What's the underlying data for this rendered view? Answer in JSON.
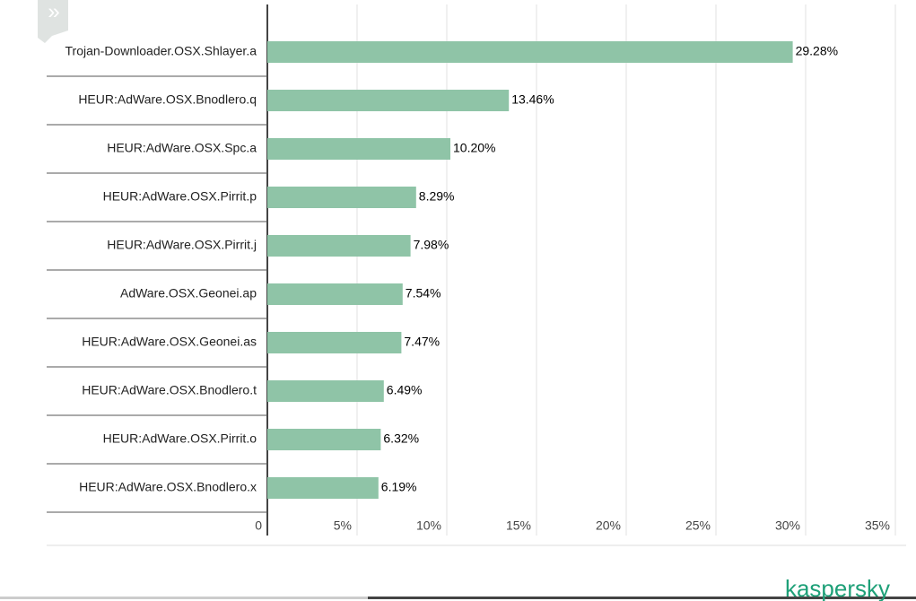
{
  "chart_data": {
    "type": "hbar",
    "categories": [
      "Trojan-Downloader.OSX.Shlayer.a",
      "HEUR:AdWare.OSX.Bnodlero.q",
      "HEUR:AdWare.OSX.Spc.a",
      "HEUR:AdWare.OSX.Pirrit.p",
      "HEUR:AdWare.OSX.Pirrit.j",
      "AdWare.OSX.Geonei.ap",
      "HEUR:AdWare.OSX.Geonei.as",
      "HEUR:AdWare.OSX.Bnodlero.t",
      "HEUR:AdWare.OSX.Pirrit.o",
      "HEUR:AdWare.OSX.Bnodlero.x"
    ],
    "values": [
      29.28,
      13.46,
      10.2,
      8.29,
      7.98,
      7.54,
      7.47,
      6.49,
      6.32,
      6.19
    ],
    "value_labels": [
      "29.28%",
      "13.46%",
      "10.20%",
      "8.29%",
      "7.98%",
      "7.54%",
      "7.47%",
      "6.49%",
      "6.32%",
      "6.19%"
    ],
    "color": "#8fc4a7",
    "xlim": [
      0,
      35
    ],
    "xticks": [
      0,
      {
        "value": 5,
        "label": "5%"
      },
      {
        "value": 10,
        "label": "10%"
      },
      {
        "value": 15,
        "label": "15%"
      },
      {
        "value": 20,
        "label": "20%"
      },
      {
        "value": 25,
        "label": "25%"
      },
      {
        "value": 30,
        "label": "30%"
      },
      {
        "value": 35,
        "label": "35%"
      }
    ],
    "grid": true
  },
  "logo": "kaspersky"
}
